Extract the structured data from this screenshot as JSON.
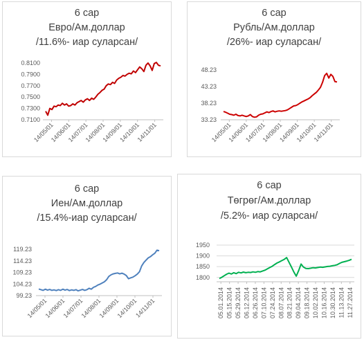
{
  "chart_data": [
    {
      "type": "line",
      "title": [
        "6 сар",
        "Евро/Ам.доллар",
        "/11.6%- иар суларсан/"
      ],
      "series": [
        {
          "color": "#c00000",
          "values": [
            0.725,
            0.718,
            0.73,
            0.728,
            0.734,
            0.733,
            0.736,
            0.735,
            0.739,
            0.736,
            0.738,
            0.734,
            0.735,
            0.738,
            0.736,
            0.74,
            0.742,
            0.744,
            0.741,
            0.745,
            0.747,
            0.744,
            0.748,
            0.746,
            0.75,
            0.755,
            0.758,
            0.762,
            0.764,
            0.77,
            0.773,
            0.772,
            0.776,
            0.774,
            0.78,
            0.783,
            0.785,
            0.788,
            0.787,
            0.79,
            0.792,
            0.791,
            0.796,
            0.793,
            0.798,
            0.803,
            0.8,
            0.795,
            0.806,
            0.81,
            0.805,
            0.797,
            0.809,
            0.811,
            0.806,
            0.805
          ]
        }
      ],
      "y_ticks": [
        "0.7100",
        "0.7300",
        "0.7500",
        "0.7700",
        "0.7900",
        "0.8100"
      ],
      "y_tick_values": [
        0.71,
        0.73,
        0.75,
        0.77,
        0.79,
        0.81
      ],
      "ylim": [
        0.71,
        0.81
      ],
      "x_ticks": [
        "14/05/01",
        "14/06/01",
        "14/07/01",
        "14/08/01",
        "14/09/01",
        "14/10/01",
        "14/11/01"
      ]
    },
    {
      "type": "line",
      "title": [
        "6 сар",
        "Рубль/Ам.доллар",
        "/26%- иар суларсан/"
      ],
      "series": [
        {
          "color": "#cc0000",
          "values": [
            35.7,
            35.5,
            35.2,
            34.9,
            34.8,
            34.6,
            34.9,
            34.5,
            34.4,
            34.6,
            34.4,
            34.2,
            34.4,
            34.8,
            34.2,
            34.0,
            34.1,
            34.6,
            34.9,
            35.0,
            35.3,
            35.6,
            35.4,
            35.7,
            35.9,
            35.6,
            35.8,
            35.9,
            35.8,
            35.9,
            36.0,
            36.2,
            36.6,
            37.0,
            37.4,
            37.5,
            37.8,
            38.2,
            38.6,
            38.9,
            39.2,
            39.5,
            39.9,
            40.5,
            41.0,
            41.5,
            42.2,
            43.0,
            44.5,
            46.5,
            47.2,
            45.8,
            46.9,
            46.3,
            44.7,
            44.6
          ]
        }
      ],
      "y_ticks": [
        "33.23",
        "38.23",
        "43.23",
        "48.23"
      ],
      "y_tick_values": [
        33.23,
        38.23,
        43.23,
        48.23
      ],
      "ylim": [
        33.23,
        48.23
      ],
      "x_ticks": [
        "14/05/01",
        "14/06/01",
        "14/07/01",
        "14/08/01",
        "14/09/01",
        "14/10/01",
        "14/11/01"
      ]
    },
    {
      "type": "line",
      "title": [
        "6 сар",
        "Иен/Ам.доллар",
        "/15.4%-иар суларсан/"
      ],
      "series": [
        {
          "color": "#4f81bd",
          "values": [
            102.1,
            101.8,
            101.5,
            102.0,
            101.6,
            101.9,
            101.5,
            101.7,
            101.4,
            101.8,
            101.5,
            102.0,
            101.6,
            101.9,
            101.4,
            101.7,
            101.5,
            101.8,
            101.3,
            101.6,
            101.9,
            101.5,
            101.8,
            102.4,
            102.0,
            102.8,
            103.2,
            103.8,
            104.2,
            104.7,
            105.2,
            106.1,
            107.5,
            108.2,
            108.6,
            108.8,
            109.0,
            108.6,
            108.9,
            108.5,
            107.9,
            106.5,
            106.9,
            107.2,
            107.8,
            108.5,
            109.5,
            112.0,
            113.5,
            114.5,
            115.5,
            116.0,
            116.8,
            117.5,
            118.8,
            118.6
          ]
        }
      ],
      "y_ticks": [
        "99.23",
        "104.23",
        "109.23",
        "114.23",
        "119.23"
      ],
      "y_tick_values": [
        99.23,
        104.23,
        109.23,
        114.23,
        119.23
      ],
      "ylim": [
        99.23,
        119.23
      ],
      "x_ticks": [
        "14/05/01",
        "14/06/01",
        "14/07/01",
        "14/08/01",
        "14/09/01",
        "14/10/01",
        "14/11/01"
      ]
    },
    {
      "type": "line",
      "title": [
        "6 сар",
        "Төгрөг/Ам.доллар",
        "/5.2%- иар суларсан/"
      ],
      "series": [
        {
          "color": "#00b050",
          "values": [
            1795,
            1801,
            1808,
            1815,
            1820,
            1816,
            1822,
            1818,
            1824,
            1821,
            1825,
            1822,
            1824,
            1823,
            1826,
            1824,
            1827,
            1826,
            1830,
            1834,
            1840,
            1846,
            1852,
            1860,
            1867,
            1872,
            1878,
            1884,
            1892,
            1870,
            1848,
            1825,
            1806,
            1832,
            1862,
            1848,
            1842,
            1841,
            1843,
            1845,
            1844,
            1846,
            1848,
            1847,
            1849,
            1851,
            1852,
            1854,
            1856,
            1859,
            1865,
            1870,
            1873,
            1876,
            1879,
            1884
          ]
        }
      ],
      "y_ticks": [
        "1800",
        "1850",
        "1900",
        "1950"
      ],
      "y_tick_values": [
        1800,
        1850,
        1900,
        1950
      ],
      "ylim": [
        1780,
        1950
      ],
      "x_ticks": [
        "05.01.2014",
        "05.15.2014",
        "05.29.2014",
        "06.12.2014",
        "06.26.2014",
        "07.10.2014",
        "07.24.2014",
        "08.07.2014",
        "08.21.2014",
        "09.04.2014",
        "09.18.2014",
        "10.02.2014",
        "10.16.2014",
        "10.30.2014",
        "11.13.2014",
        "11.27.2014"
      ]
    }
  ]
}
